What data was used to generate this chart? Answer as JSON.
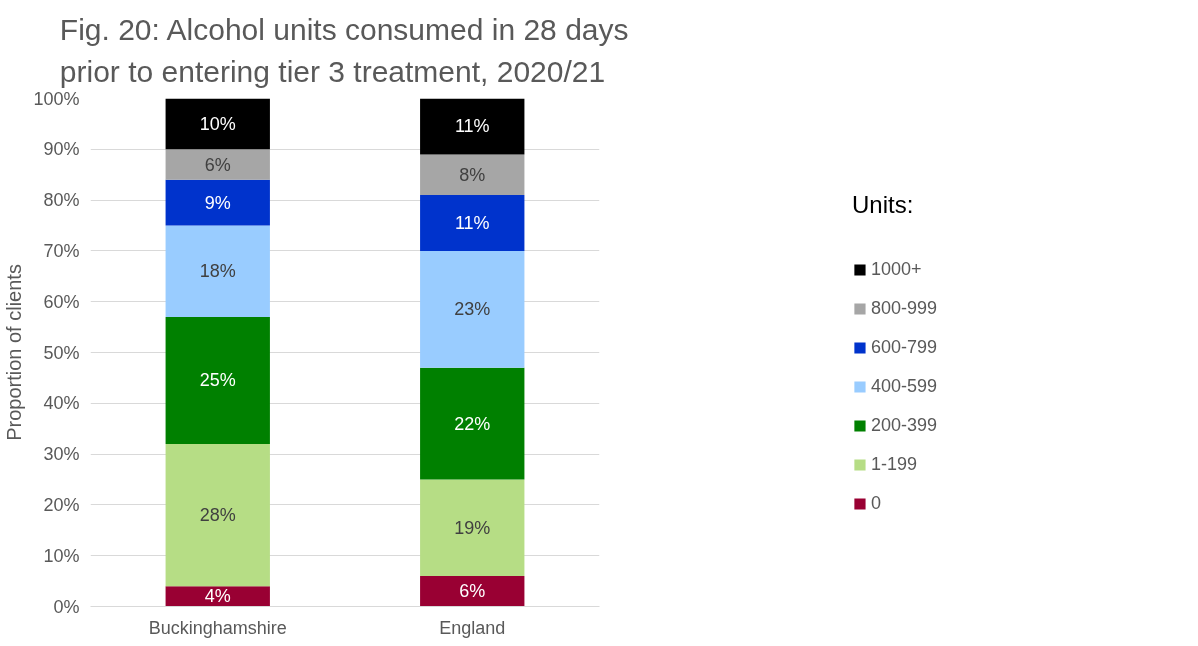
{
  "chart_data": {
    "type": "bar",
    "stacked": true,
    "title": "Fig. 20: Alcohol units consumed in 28 days\nprior to entering tier 3 treatment, 2020/21",
    "ylabel": "Proportion of clients",
    "legend_title": "Units:",
    "categories": [
      "Buckinghamshire",
      "England"
    ],
    "ylim": [
      0,
      100
    ],
    "yticks": [
      {
        "value": 0,
        "label": "0%"
      },
      {
        "value": 10,
        "label": "10%"
      },
      {
        "value": 20,
        "label": "20%"
      },
      {
        "value": 30,
        "label": "30%"
      },
      {
        "value": 40,
        "label": "40%"
      },
      {
        "value": 50,
        "label": "50%"
      },
      {
        "value": 60,
        "label": "60%"
      },
      {
        "value": 70,
        "label": "70%"
      },
      {
        "value": 80,
        "label": "80%"
      },
      {
        "value": 90,
        "label": "90%"
      },
      {
        "value": 100,
        "label": "100%"
      }
    ],
    "grid": "y",
    "legend": "right",
    "series": [
      {
        "name": "0",
        "color": "#990033",
        "values": [
          4,
          6
        ],
        "value_labels": [
          "4%",
          "6%"
        ]
      },
      {
        "name": "1-199",
        "color": "#b6dd85",
        "values": [
          28,
          19
        ],
        "value_labels": [
          "28%",
          "19%"
        ]
      },
      {
        "name": "200-399",
        "color": "#008000",
        "values": [
          25,
          22
        ],
        "value_labels": [
          "25%",
          "22%"
        ]
      },
      {
        "name": "400-599",
        "color": "#99ccff",
        "values": [
          18,
          23
        ],
        "value_labels": [
          "18%",
          "23%"
        ]
      },
      {
        "name": "600-799",
        "color": "#0033cc",
        "values": [
          9,
          11
        ],
        "value_labels": [
          "9%",
          "11%"
        ]
      },
      {
        "name": "800-999",
        "color": "#a6a6a6",
        "values": [
          6,
          8
        ],
        "value_labels": [
          "6%",
          "8%"
        ]
      },
      {
        "name": "1000+",
        "color": "#000000",
        "values": [
          10,
          11
        ],
        "value_labels": [
          "10%",
          "11%"
        ]
      }
    ]
  }
}
